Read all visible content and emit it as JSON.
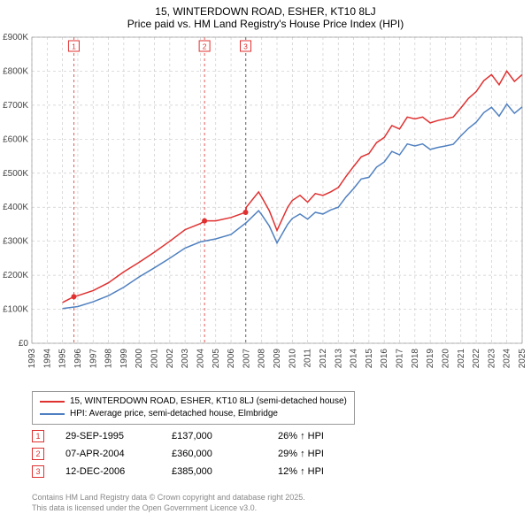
{
  "title_line1": "15, WINTERDOWN ROAD, ESHER, KT10 8LJ",
  "title_line2": "Price paid vs. HM Land Registry's House Price Index (HPI)",
  "chart": {
    "type": "line",
    "background_color": "#ffffff",
    "plot_bg_color": "#ffffff",
    "grid_color": "#cccccc",
    "axis_color": "#000000",
    "font_family": "Arial",
    "title_fontsize": 12,
    "axis_label_fontsize": 10,
    "x_axis": {
      "min_year": 1993,
      "max_year": 2025,
      "tick_step_years": 1,
      "labels": [
        "1993",
        "1994",
        "1995",
        "1996",
        "1997",
        "1998",
        "1999",
        "2000",
        "2001",
        "2002",
        "2003",
        "2004",
        "2005",
        "2006",
        "2007",
        "2008",
        "2009",
        "2010",
        "2011",
        "2012",
        "2013",
        "2014",
        "2015",
        "2016",
        "2017",
        "2018",
        "2019",
        "2020",
        "2021",
        "2022",
        "2023",
        "2024",
        "2025"
      ],
      "label_rotation_deg": -90,
      "label_color": "#444444"
    },
    "y_axis": {
      "min": 0,
      "max": 900000,
      "tick_step": 100000,
      "labels": [
        "£0",
        "£100K",
        "£200K",
        "£300K",
        "£400K",
        "£500K",
        "£600K",
        "£700K",
        "£800K",
        "£900K"
      ],
      "label_color": "#444444",
      "grid_dash": "3,3"
    },
    "series": [
      {
        "name": "property",
        "label": "15, WINTERDOWN ROAD, ESHER, KT10 8LJ (semi-detached house)",
        "color": "#e03030",
        "line_width": 1.5,
        "data_by_year": {
          "1995.0": 120000,
          "1995.74": 137000,
          "1996.0": 140000,
          "1997.0": 155000,
          "1998.0": 178000,
          "1999.0": 210000,
          "2000.0": 238000,
          "2001.0": 268000,
          "2002.0": 300000,
          "2003.0": 334000,
          "2004.0": 352000,
          "2004.27": 360000,
          "2005.0": 360000,
          "2006.0": 370000,
          "2006.95": 385000,
          "2007.0": 400000,
          "2007.8": 445000,
          "2008.0": 430000,
          "2008.5": 390000,
          "2009.0": 332000,
          "2009.7": 400000,
          "2010.0": 420000,
          "2010.5": 435000,
          "2011.0": 415000,
          "2011.5": 440000,
          "2012.0": 435000,
          "2012.5": 445000,
          "2013.0": 458000,
          "2013.5": 490000,
          "2014.0": 520000,
          "2014.5": 548000,
          "2015.0": 558000,
          "2015.5": 590000,
          "2016.0": 605000,
          "2016.5": 640000,
          "2017.0": 630000,
          "2017.5": 665000,
          "2018.0": 660000,
          "2018.5": 665000,
          "2019.0": 648000,
          "2019.5": 655000,
          "2020.0": 660000,
          "2020.5": 665000,
          "2021.0": 692000,
          "2021.5": 720000,
          "2022.0": 740000,
          "2022.5": 772000,
          "2023.0": 790000,
          "2023.5": 760000,
          "2024.0": 800000,
          "2024.5": 770000,
          "2025.0": 790000
        }
      },
      {
        "name": "hpi",
        "label": "HPI: Average price, semi-detached house, Elmbridge",
        "color": "#5080c0",
        "line_width": 1.5,
        "data_by_year": {
          "1995.0": 102000,
          "1996.0": 108000,
          "1997.0": 122000,
          "1998.0": 140000,
          "1999.0": 165000,
          "2000.0": 195000,
          "2001.0": 222000,
          "2002.0": 250000,
          "2003.0": 280000,
          "2004.0": 298000,
          "2005.0": 307000,
          "2006.0": 320000,
          "2007.0": 355000,
          "2007.8": 390000,
          "2008.0": 378000,
          "2008.5": 345000,
          "2009.0": 295000,
          "2009.7": 350000,
          "2010.0": 367000,
          "2010.5": 380000,
          "2011.0": 365000,
          "2011.5": 385000,
          "2012.0": 380000,
          "2012.5": 392000,
          "2013.0": 400000,
          "2013.5": 430000,
          "2014.0": 455000,
          "2014.5": 483000,
          "2015.0": 488000,
          "2015.5": 518000,
          "2016.0": 533000,
          "2016.5": 564000,
          "2017.0": 554000,
          "2017.5": 586000,
          "2018.0": 580000,
          "2018.5": 586000,
          "2019.0": 570000,
          "2019.5": 576000,
          "2020.0": 580000,
          "2020.5": 585000,
          "2021.0": 610000,
          "2021.5": 632000,
          "2022.0": 650000,
          "2022.5": 678000,
          "2023.0": 694000,
          "2023.5": 668000,
          "2024.0": 703000,
          "2024.5": 676000,
          "2025.0": 695000
        }
      }
    ],
    "event_markers": [
      {
        "index": "1",
        "year_frac": 1995.74,
        "value": 137000,
        "color": "#e03030"
      },
      {
        "index": "2",
        "year_frac": 2004.27,
        "value": 360000,
        "color": "#e03030"
      },
      {
        "index": "3",
        "year_frac": 2006.95,
        "value": 385000,
        "color": "#e03030"
      }
    ],
    "event_marker_band_color": "#f6e6e6",
    "event_marker_line_dash": "3,3"
  },
  "legend": {
    "items": [
      {
        "color": "#e03030",
        "text": "15, WINTERDOWN ROAD, ESHER, KT10 8LJ (semi-detached house)"
      },
      {
        "color": "#5080c0",
        "text": "HPI: Average price, semi-detached house, Elmbridge"
      }
    ]
  },
  "events_table": [
    {
      "idx": "1",
      "color": "#e03030",
      "date": "29-SEP-1995",
      "price": "£137,000",
      "pct": "26% ↑ HPI"
    },
    {
      "idx": "2",
      "color": "#e03030",
      "date": "07-APR-2004",
      "price": "£360,000",
      "pct": "29% ↑ HPI"
    },
    {
      "idx": "3",
      "color": "#e03030",
      "date": "12-DEC-2006",
      "price": "£385,000",
      "pct": "12% ↑ HPI"
    }
  ],
  "license_line1": "Contains HM Land Registry data © Crown copyright and database right 2025.",
  "license_line2": "This data is licensed under the Open Government Licence v3.0."
}
